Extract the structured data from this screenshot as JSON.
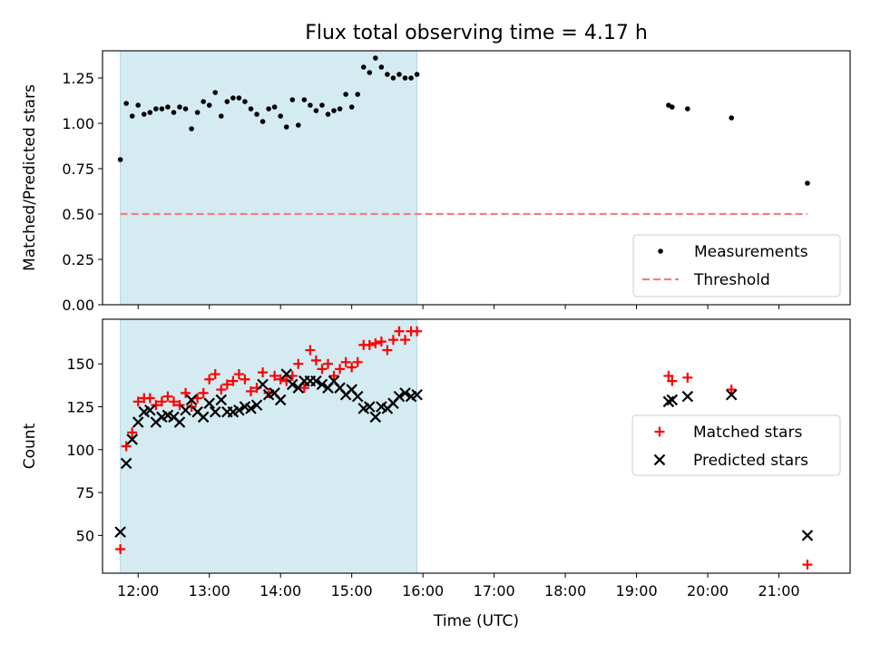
{
  "chart_data": [
    {
      "type": "scatter",
      "title": "Flux total observing time = 4.17 h",
      "xlabel": "",
      "ylabel": "Matched/Predicted stars",
      "xlim": [
        "11:30",
        "22:00"
      ],
      "ylim": [
        0.0,
        1.4
      ],
      "yticks": [
        "0.00",
        "0.25",
        "0.50",
        "0.75",
        "1.00",
        "1.25"
      ],
      "shaded_span": {
        "from": "11:45",
        "to": "15:55",
        "color": "#add8e6"
      },
      "legend": {
        "position": "lower-right"
      },
      "series": [
        {
          "name": "Measurements",
          "marker": "dot",
          "color": "#000000",
          "points": [
            [
              "11:45",
              0.8
            ],
            [
              "11:50",
              1.11
            ],
            [
              "11:55",
              1.04
            ],
            [
              "12:00",
              1.1
            ],
            [
              "12:05",
              1.05
            ],
            [
              "12:10",
              1.06
            ],
            [
              "12:15",
              1.08
            ],
            [
              "12:20",
              1.08
            ],
            [
              "12:25",
              1.09
            ],
            [
              "12:30",
              1.06
            ],
            [
              "12:35",
              1.09
            ],
            [
              "12:40",
              1.08
            ],
            [
              "12:45",
              0.97
            ],
            [
              "12:50",
              1.06
            ],
            [
              "12:55",
              1.12
            ],
            [
              "13:00",
              1.1
            ],
            [
              "13:05",
              1.17
            ],
            [
              "13:10",
              1.04
            ],
            [
              "13:15",
              1.12
            ],
            [
              "13:20",
              1.14
            ],
            [
              "13:25",
              1.14
            ],
            [
              "13:30",
              1.12
            ],
            [
              "13:35",
              1.08
            ],
            [
              "13:40",
              1.05
            ],
            [
              "13:45",
              1.01
            ],
            [
              "13:50",
              1.08
            ],
            [
              "13:55",
              1.09
            ],
            [
              "14:00",
              1.04
            ],
            [
              "14:05",
              0.98
            ],
            [
              "14:10",
              1.13
            ],
            [
              "14:15",
              0.99
            ],
            [
              "14:20",
              1.13
            ],
            [
              "14:25",
              1.1
            ],
            [
              "14:30",
              1.07
            ],
            [
              "14:35",
              1.1
            ],
            [
              "14:40",
              1.05
            ],
            [
              "14:45",
              1.07
            ],
            [
              "14:50",
              1.08
            ],
            [
              "14:55",
              1.16
            ],
            [
              "15:00",
              1.09
            ],
            [
              "15:05",
              1.16
            ],
            [
              "15:10",
              1.31
            ],
            [
              "15:15",
              1.28
            ],
            [
              "15:20",
              1.36
            ],
            [
              "15:25",
              1.31
            ],
            [
              "15:30",
              1.27
            ],
            [
              "15:35",
              1.25
            ],
            [
              "15:40",
              1.27
            ],
            [
              "15:45",
              1.25
            ],
            [
              "15:50",
              1.25
            ],
            [
              "15:55",
              1.27
            ],
            [
              "19:27",
              1.1
            ],
            [
              "19:30",
              1.09
            ],
            [
              "19:43",
              1.08
            ],
            [
              "20:20",
              1.03
            ],
            [
              "21:24",
              0.67
            ]
          ]
        },
        {
          "name": "Threshold",
          "line": "dashed",
          "color": "#f08080",
          "points": [
            [
              "11:45",
              0.5
            ],
            [
              "21:24",
              0.5
            ]
          ]
        }
      ]
    },
    {
      "type": "scatter",
      "title": "",
      "xlabel": "Time (UTC)",
      "ylabel": "Count",
      "xlim": [
        "11:30",
        "22:00"
      ],
      "ylim": [
        28,
        176
      ],
      "yticks": [
        "50",
        "75",
        "100",
        "125",
        "150"
      ],
      "xticks": [
        "12:00",
        "13:00",
        "14:00",
        "15:00",
        "16:00",
        "17:00",
        "18:00",
        "19:00",
        "20:00",
        "21:00"
      ],
      "shaded_span": {
        "from": "11:45",
        "to": "15:55",
        "color": "#add8e6"
      },
      "legend": {
        "position": "center-right"
      },
      "series": [
        {
          "name": "Matched stars",
          "marker": "plus",
          "color": "#ff0000",
          "points": [
            [
              "11:45",
              42
            ],
            [
              "11:50",
              102
            ],
            [
              "11:55",
              110
            ],
            [
              "12:00",
              128
            ],
            [
              "12:05",
              130
            ],
            [
              "12:10",
              130
            ],
            [
              "12:15",
              126
            ],
            [
              "12:20",
              128
            ],
            [
              "12:25",
              131
            ],
            [
              "12:30",
              128
            ],
            [
              "12:35",
              126
            ],
            [
              "12:40",
              133
            ],
            [
              "12:45",
              125
            ],
            [
              "12:50",
              130
            ],
            [
              "12:55",
              133
            ],
            [
              "13:00",
              141
            ],
            [
              "13:05",
              144
            ],
            [
              "13:10",
              135
            ],
            [
              "13:15",
              138
            ],
            [
              "13:20",
              140
            ],
            [
              "13:25",
              144
            ],
            [
              "13:30",
              141
            ],
            [
              "13:35",
              134
            ],
            [
              "13:40",
              136
            ],
            [
              "13:45",
              145
            ],
            [
              "13:50",
              133
            ],
            [
              "13:55",
              143
            ],
            [
              "14:00",
              141
            ],
            [
              "14:05",
              140
            ],
            [
              "14:10",
              143
            ],
            [
              "14:15",
              150
            ],
            [
              "14:20",
              136
            ],
            [
              "14:25",
              158
            ],
            [
              "14:30",
              152
            ],
            [
              "14:35",
              147
            ],
            [
              "14:40",
              150
            ],
            [
              "14:45",
              143
            ],
            [
              "14:50",
              147
            ],
            [
              "14:55",
              151
            ],
            [
              "15:00",
              148
            ],
            [
              "15:05",
              151
            ],
            [
              "15:10",
              161
            ],
            [
              "15:15",
              161
            ],
            [
              "15:20",
              162
            ],
            [
              "15:25",
              163
            ],
            [
              "15:30",
              158
            ],
            [
              "15:35",
              164
            ],
            [
              "15:40",
              169
            ],
            [
              "15:45",
              164
            ],
            [
              "15:50",
              169
            ],
            [
              "15:55",
              169
            ],
            [
              "19:27",
              143
            ],
            [
              "19:30",
              140
            ],
            [
              "19:43",
              142
            ],
            [
              "20:20",
              135
            ],
            [
              "21:24",
              33
            ]
          ]
        },
        {
          "name": "Predicted stars",
          "marker": "x",
          "color": "#000000",
          "points": [
            [
              "11:45",
              52
            ],
            [
              "11:50",
              92
            ],
            [
              "11:55",
              106
            ],
            [
              "12:00",
              116
            ],
            [
              "12:05",
              122
            ],
            [
              "12:10",
              123
            ],
            [
              "12:15",
              116
            ],
            [
              "12:20",
              119
            ],
            [
              "12:25",
              120
            ],
            [
              "12:30",
              119
            ],
            [
              "12:35",
              116
            ],
            [
              "12:40",
              123
            ],
            [
              "12:45",
              129
            ],
            [
              "12:50",
              122
            ],
            [
              "12:55",
              119
            ],
            [
              "13:00",
              127
            ],
            [
              "13:05",
              122
            ],
            [
              "13:10",
              129
            ],
            [
              "13:15",
              122
            ],
            [
              "13:20",
              122
            ],
            [
              "13:25",
              123
            ],
            [
              "13:30",
              125
            ],
            [
              "13:35",
              124
            ],
            [
              "13:40",
              126
            ],
            [
              "13:45",
              138
            ],
            [
              "13:50",
              132
            ],
            [
              "13:55",
              133
            ],
            [
              "14:00",
              129
            ],
            [
              "14:05",
              144
            ],
            [
              "14:10",
              138
            ],
            [
              "14:15",
              136
            ],
            [
              "14:20",
              140
            ],
            [
              "14:25",
              140
            ],
            [
              "14:30",
              140
            ],
            [
              "14:35",
              138
            ],
            [
              "14:40",
              136
            ],
            [
              "14:45",
              140
            ],
            [
              "14:50",
              136
            ],
            [
              "14:55",
              132
            ],
            [
              "15:00",
              135
            ],
            [
              "15:05",
              131
            ],
            [
              "15:10",
              124
            ],
            [
              "15:15",
              125
            ],
            [
              "15:20",
              119
            ],
            [
              "15:25",
              125
            ],
            [
              "15:30",
              124
            ],
            [
              "15:35",
              127
            ],
            [
              "15:40",
              131
            ],
            [
              "15:45",
              133
            ],
            [
              "15:50",
              131
            ],
            [
              "15:55",
              132
            ],
            [
              "19:27",
              128
            ],
            [
              "19:30",
              129
            ],
            [
              "19:43",
              131
            ],
            [
              "20:20",
              132
            ],
            [
              "21:24",
              50
            ]
          ]
        }
      ]
    }
  ]
}
